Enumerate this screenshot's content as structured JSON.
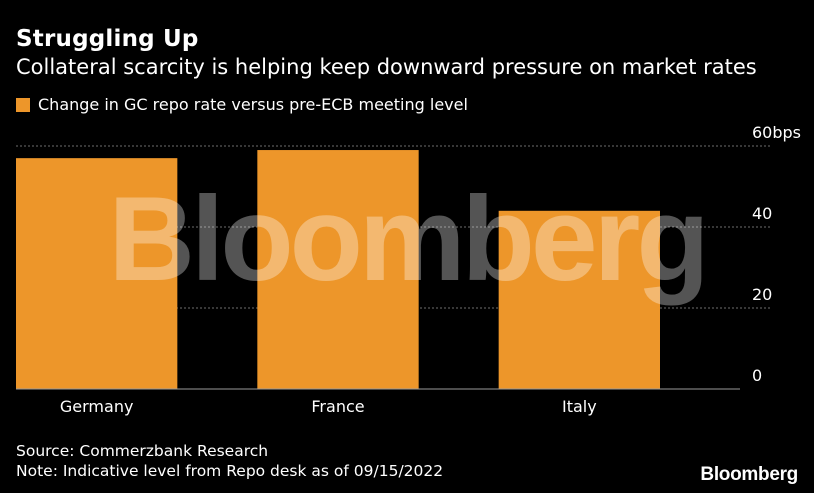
{
  "header": {
    "title": "Struggling Up",
    "subtitle": "Collateral scarcity is helping keep downward pressure on market rates"
  },
  "colors": {
    "bar": "#ED962A",
    "grid": "#6e6e6e",
    "background": "#000000"
  },
  "chart_data": {
    "type": "bar",
    "title": "Struggling Up",
    "subtitle": "Collateral scarcity is helping keep downward pressure on market rates",
    "categories": [
      "Germany",
      "France",
      "Italy"
    ],
    "series": [
      {
        "name": "Change in GC repo rate versus pre-ECB meeting level",
        "values": [
          57,
          59,
          44
        ]
      }
    ],
    "ylim": [
      0,
      60
    ],
    "yticks": [
      0,
      20,
      40,
      60
    ],
    "ytick_labels": [
      "0",
      "20",
      "40",
      "60bps"
    ],
    "yaxis_side": "right",
    "grid": true,
    "legend_position": "top-left"
  },
  "footer": {
    "source": "Source: Commerzbank Research",
    "note": "Note: Indicative level from Repo desk as of 09/15/2022",
    "brand": "Bloomberg"
  },
  "watermark": "Bloomberg"
}
